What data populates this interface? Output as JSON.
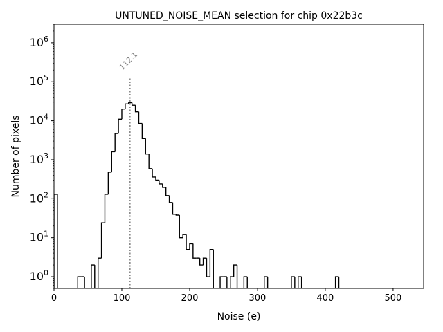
{
  "chart_data": {
    "type": "bar",
    "histtype": "step",
    "title": "UNTUNED_NOISE_MEAN selection for chip 0x22b3c",
    "xlabel": "Noise (e)",
    "ylabel": "Number of pixels",
    "xlim": [
      0,
      545
    ],
    "ylim": [
      0.5,
      3000000
    ],
    "yscale": "log",
    "grid": false,
    "bin_start": 0,
    "bin_width": 5,
    "counts": [
      130,
      0,
      0,
      0,
      0,
      0,
      0,
      1,
      1,
      0,
      0,
      2,
      0,
      3,
      24,
      130,
      480,
      1600,
      4700,
      11000,
      20000,
      27000,
      29000,
      25000,
      17000,
      8500,
      3500,
      1400,
      590,
      360,
      300,
      240,
      195,
      120,
      80,
      40,
      38,
      10,
      12,
      5,
      7,
      3,
      3,
      2,
      3,
      1,
      5,
      0,
      0,
      1,
      1,
      0,
      1,
      2,
      0,
      0,
      1,
      0,
      0,
      0,
      0,
      0,
      1,
      0,
      0,
      0,
      0,
      0,
      0,
      0,
      1,
      0,
      1,
      0,
      0,
      0,
      0,
      0,
      0,
      0,
      0,
      0,
      0,
      1
    ],
    "x_ticks": [
      0,
      100,
      200,
      300,
      400,
      500
    ],
    "x_tick_labels": [
      "0",
      "100",
      "200",
      "300",
      "400",
      "500"
    ],
    "y_ticks": [
      1,
      10,
      100,
      1000,
      10000,
      100000,
      1000000
    ],
    "y_tick_labels": [
      {
        "base": "10",
        "exp": "0"
      },
      {
        "base": "10",
        "exp": "1"
      },
      {
        "base": "10",
        "exp": "2"
      },
      {
        "base": "10",
        "exp": "3"
      },
      {
        "base": "10",
        "exp": "4"
      },
      {
        "base": "10",
        "exp": "5"
      },
      {
        "base": "10",
        "exp": "6"
      }
    ],
    "annotation": {
      "x": 112.1,
      "label": "112.1",
      "line_top": 130000,
      "color": "#808080"
    },
    "line_color": "#000000"
  }
}
